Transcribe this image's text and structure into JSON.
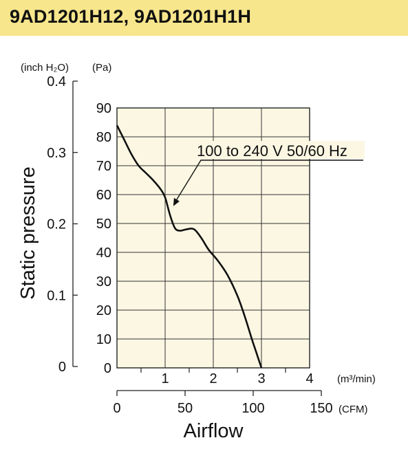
{
  "header": {
    "title": "9AD1201H12, 9AD1201H1H"
  },
  "colors": {
    "title_bg": "#f7e68c",
    "plot_bg": "#fbf7e3",
    "line": "#111111"
  },
  "chart_data": {
    "type": "line",
    "title": "9AD1201H12, 9AD1201H1H",
    "xlabel": "Airflow",
    "ylabel": "Static pressure",
    "x_unit_primary": "(m³/min)",
    "x_unit_secondary": "(CFM)",
    "y_unit_primary": "(Pa)",
    "y_unit_secondary": "(inch H₂O)",
    "xlim": [
      0,
      4
    ],
    "ylim": [
      0,
      90
    ],
    "x_ticks": [
      "1",
      "2",
      "3",
      "4"
    ],
    "x_zero_label": "0",
    "y_ticks": [
      "0",
      "10",
      "20",
      "30",
      "40",
      "50",
      "60",
      "70",
      "80",
      "90"
    ],
    "cfm_ticks": [
      "0",
      "50",
      "100",
      "150"
    ],
    "cfm_range": [
      0,
      150
    ],
    "inch_ticks": [
      "0",
      "0.1",
      "0.2",
      "0.3",
      "0.4"
    ],
    "inch_range": [
      0,
      0.4
    ],
    "grid": true,
    "series": [
      {
        "name": "100 to 240 V 50/60 Hz",
        "x": [
          0,
          0.15,
          0.3,
          0.45,
          0.6,
          0.75,
          0.9,
          1.0,
          1.1,
          1.2,
          1.3,
          1.45,
          1.6,
          1.75,
          1.9,
          2.1,
          2.3,
          2.5,
          2.65,
          2.8,
          2.9,
          3.0
        ],
        "y": [
          84,
          79,
          74,
          70,
          67.5,
          65,
          62,
          59,
          53,
          48.5,
          47.5,
          48,
          48,
          45,
          41,
          37,
          32,
          25,
          18,
          10,
          5,
          0
        ]
      }
    ],
    "annotations": [
      {
        "text": "100 to 240 V 50/60 Hz",
        "points_to_x": 1.17,
        "points_to_y": 56
      }
    ]
  }
}
